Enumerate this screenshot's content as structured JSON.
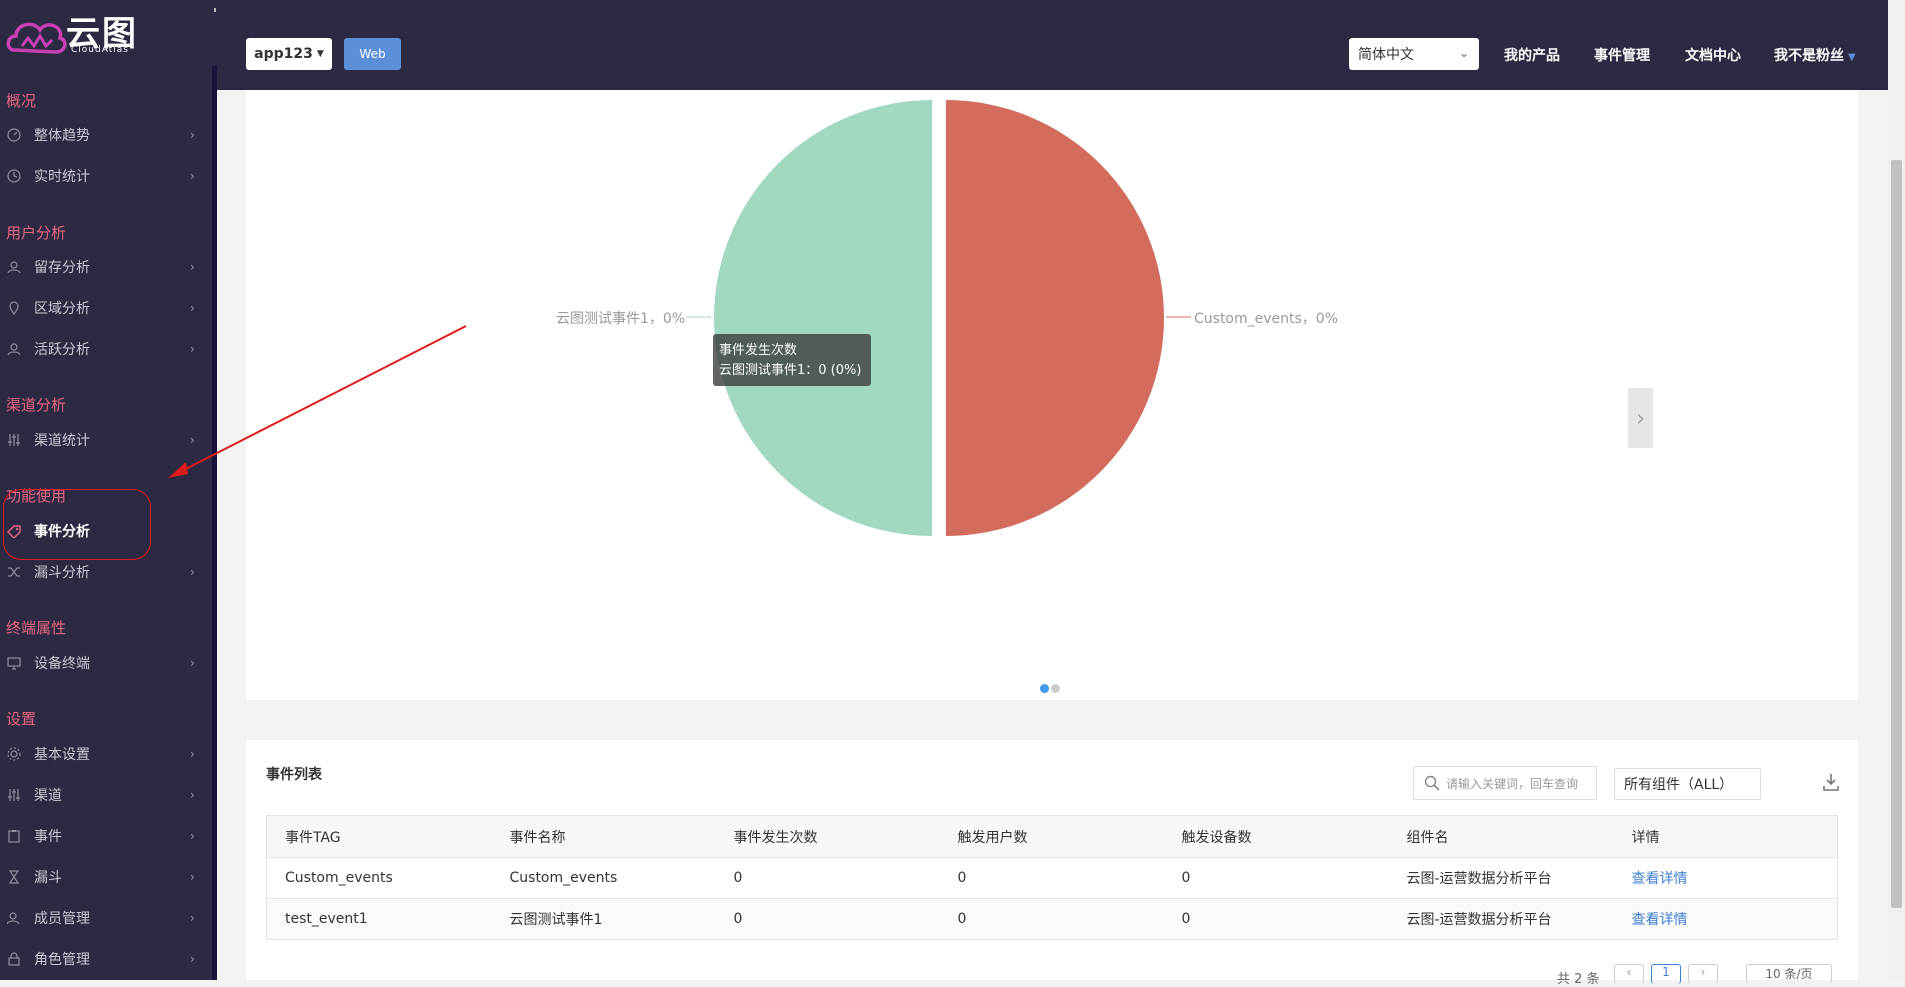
{
  "brand": {
    "name": "云图",
    "sub": "CloudAtlas"
  },
  "sidebar": {
    "sections": [
      {
        "title": "概况",
        "items": [
          {
            "label": "整体趋势",
            "icon": "gauge-icon"
          },
          {
            "label": "实时统计",
            "icon": "clock-icon"
          }
        ]
      },
      {
        "title": "用户分析",
        "items": [
          {
            "label": "留存分析",
            "icon": "user-icon"
          },
          {
            "label": "区域分析",
            "icon": "map-pin-icon"
          },
          {
            "label": "活跃分析",
            "icon": "user-icon"
          }
        ]
      },
      {
        "title": "渠道分析",
        "items": [
          {
            "label": "渠道统计",
            "icon": "sliders-icon"
          }
        ]
      },
      {
        "title": "功能使用",
        "items": [
          {
            "label": "事件分析",
            "icon": "tag-icon",
            "active": true
          },
          {
            "label": "漏斗分析",
            "icon": "shuffle-icon"
          }
        ]
      },
      {
        "title": "终端属性",
        "items": [
          {
            "label": "设备终端",
            "icon": "monitor-icon"
          }
        ]
      },
      {
        "title": "设置",
        "items": [
          {
            "label": "基本设置",
            "icon": "gear-icon"
          },
          {
            "label": "渠道",
            "icon": "sliders-icon"
          },
          {
            "label": "事件",
            "icon": "clipboard-icon"
          },
          {
            "label": "漏斗",
            "icon": "hourglass-icon"
          },
          {
            "label": "成员管理",
            "icon": "users-icon"
          },
          {
            "label": "角色管理",
            "icon": "lock-icon"
          }
        ]
      }
    ]
  },
  "topbar": {
    "app_select": "app123",
    "platform": "Web",
    "language": "简体中文",
    "links": [
      "我的产品",
      "事件管理",
      "文档中心"
    ],
    "user": "我不是粉丝"
  },
  "chart_data": {
    "type": "pie",
    "series_title": "事件发生次数",
    "slices": [
      {
        "name": "Custom_events",
        "value": 0,
        "percent": 0,
        "color": "#d36c5c",
        "label": "Custom_events，0%"
      },
      {
        "name": "云图测试事件1",
        "value": 0,
        "percent": 0,
        "color": "#a0d9bf",
        "label": "云图测试事件1，0%"
      }
    ],
    "tooltip": {
      "title": "事件发生次数",
      "line": "云图测试事件1：0 (0%)"
    },
    "page_count": 2,
    "current_page": 1
  },
  "events": {
    "title": "事件列表",
    "search_placeholder": "请输入关键词，回车查询",
    "component_filter": "所有组件（ALL）",
    "columns": [
      "事件TAG",
      "事件名称",
      "事件发生次数",
      "触发用户数",
      "触发设备数",
      "组件名",
      "详情"
    ],
    "rows": [
      [
        "Custom_events",
        "Custom_events",
        "0",
        "0",
        "0",
        "云图-运营数据分析平台",
        "查看详情"
      ],
      [
        "test_event1",
        "云图测试事件1",
        "0",
        "0",
        "0",
        "云图-运营数据分析平台",
        "查看详情"
      ]
    ],
    "total_label": "共 2 条",
    "page": "1",
    "per_page": "10 条/页"
  },
  "colors": {
    "sidebar_bg": "#2c2a42",
    "section_title": "#e9647f",
    "accent_blue": "#5b8fd9",
    "annotation_red": "#e01b1b"
  }
}
